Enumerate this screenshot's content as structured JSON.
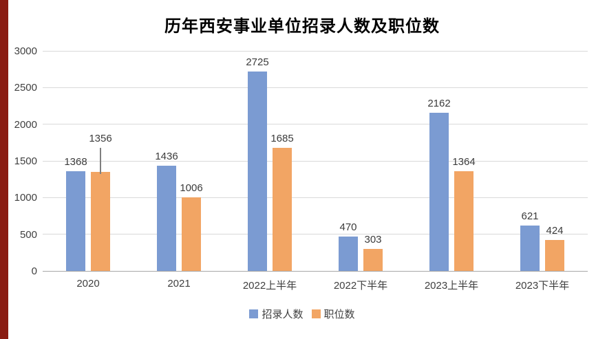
{
  "title": "历年西安事业单位招录人数及职位数",
  "accent_strip_color": "#8a1c12",
  "chart_data": {
    "type": "bar",
    "title": "历年西安事业单位招录人数及职位数",
    "categories": [
      "2020",
      "2021",
      "2022上半年",
      "2022下半年",
      "2023上半年",
      "2023下半年"
    ],
    "series": [
      {
        "name": "招录人数",
        "color": "#7b9bd2",
        "values": [
          1368,
          1436,
          2725,
          470,
          2162,
          621
        ]
      },
      {
        "name": "职位数",
        "color": "#f2a564",
        "values": [
          1356,
          1006,
          1685,
          303,
          1364,
          424
        ]
      }
    ],
    "xlabel": "",
    "ylabel": "",
    "ylim": [
      0,
      3000
    ],
    "ytick": 500,
    "grid": true,
    "legend_position": "bottom",
    "annotations": [
      {
        "type": "vertical-marker",
        "category_index": 0,
        "series_index": 1
      }
    ]
  }
}
